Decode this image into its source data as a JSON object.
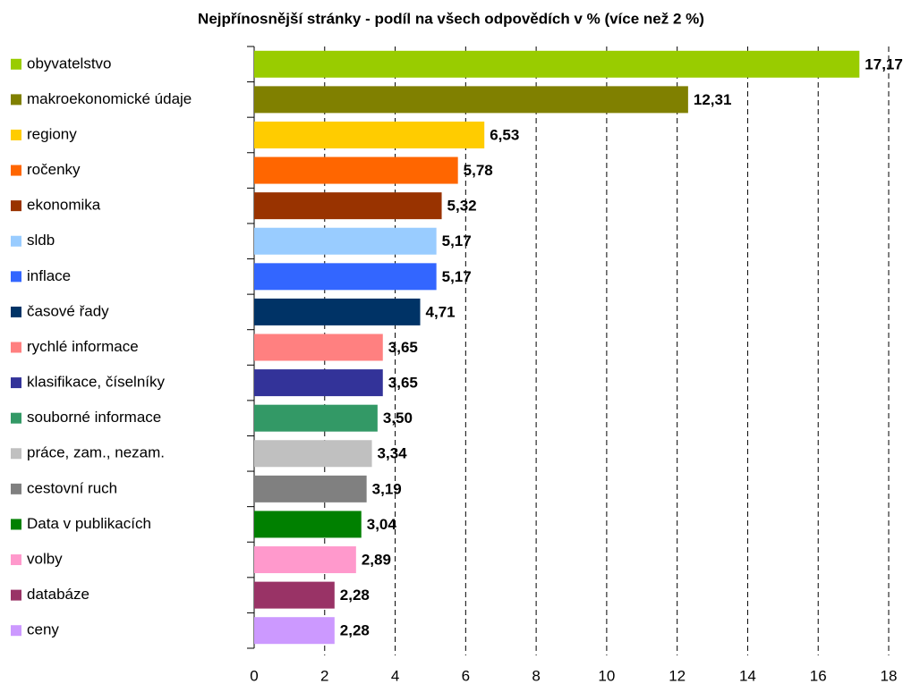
{
  "chart_data": {
    "type": "bar",
    "orientation": "horizontal",
    "title": "Nejpřínosnější stránky - podíl na všech odpovědích v % (více než 2 %)",
    "categories": [
      "obyvatelstvo",
      "makroekonomické údaje",
      "regiony",
      "ročenky",
      "ekonomika",
      "sldb",
      "inflace",
      "časové řady",
      "rychlé informace",
      "klasifikace, číselníky",
      "souborné informace",
      "práce, zam., nezam.",
      "cestovní ruch",
      "Data v publikacích",
      "volby",
      "databáze",
      "ceny"
    ],
    "values": [
      17.17,
      12.31,
      6.53,
      5.78,
      5.32,
      5.17,
      5.17,
      4.71,
      3.65,
      3.65,
      3.5,
      3.34,
      3.19,
      3.04,
      2.89,
      2.28,
      2.28
    ],
    "value_labels": [
      "17,17",
      "12,31",
      "6,53",
      "5,78",
      "5,32",
      "5,17",
      "5,17",
      "4,71",
      "3,65",
      "3,65",
      "3,50",
      "3,34",
      "3,19",
      "3,04",
      "2,89",
      "2,28",
      "2,28"
    ],
    "colors": [
      "#99cc00",
      "#808000",
      "#ffcc00",
      "#ff6600",
      "#993300",
      "#99ccff",
      "#3366ff",
      "#003366",
      "#ff8080",
      "#333399",
      "#339966",
      "#c0c0c0",
      "#808080",
      "#008000",
      "#ff99cc",
      "#993366",
      "#cc99ff"
    ],
    "xlim": [
      0,
      18
    ],
    "xticks": [
      0,
      2,
      4,
      6,
      8,
      10,
      12,
      14,
      16,
      18
    ],
    "grid": true
  }
}
